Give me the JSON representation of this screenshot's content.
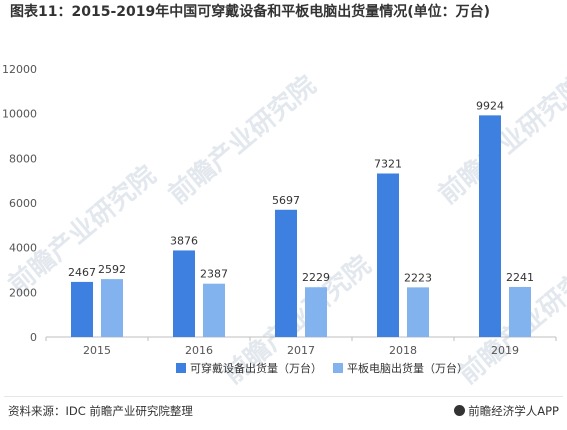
{
  "title": "图表11：2015-2019年中国可穿戴设备和平板电脑出货量情况(单位：万台)",
  "source_text": "资料来源：IDC 前瞻产业研究院整理",
  "brand_text": "前瞻经济学人APP",
  "watermark_text": "前瞻产业研究院",
  "colors": {
    "series_0": "#3d80e0",
    "series_1": "#82b3ee",
    "axis": "#bfbfbf",
    "tick_text": "#555555",
    "label_text": "#333333"
  },
  "chart_data": {
    "type": "bar",
    "categories": [
      "2015",
      "2016",
      "2017",
      "2018",
      "2019"
    ],
    "series": [
      {
        "name": "可穿戴设备出货量（万台）",
        "values": [
          2467,
          3876,
          5697,
          7321,
          9924
        ]
      },
      {
        "name": "平板电脑出货量（万台）",
        "values": [
          2592,
          2387,
          2229,
          2223,
          2241
        ]
      }
    ],
    "yticks": [
      "0",
      "2000",
      "4000",
      "6000",
      "8000",
      "10000",
      "12000"
    ],
    "ylim": [
      0,
      12000
    ],
    "grid": false,
    "legend_position": "bottom"
  }
}
